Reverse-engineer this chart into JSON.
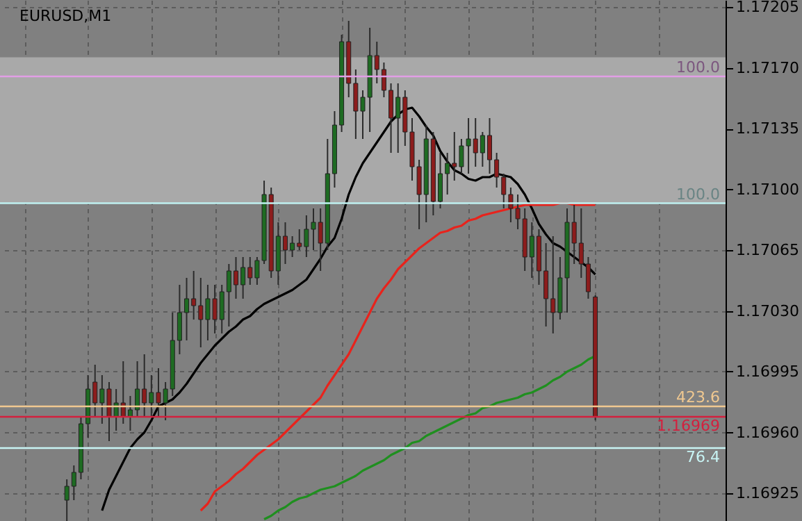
{
  "chart_data": {
    "type": "candlestick",
    "title": "EURUSD,M1",
    "categories": [
      null,
      null,
      null,
      null,
      null,
      null,
      null,
      null,
      null,
      null,
      null,
      null,
      null,
      null,
      null,
      null,
      null,
      null,
      null,
      null,
      null,
      null,
      null,
      null,
      null,
      null,
      null,
      null,
      null,
      null,
      null,
      null,
      null,
      null,
      null,
      null,
      null,
      null,
      null,
      null,
      null,
      null,
      null,
      null,
      null,
      null,
      null,
      null,
      null,
      null,
      null,
      null,
      null,
      null,
      null,
      null,
      null,
      null,
      null,
      null,
      null,
      null,
      null,
      null,
      null,
      null,
      null,
      null,
      null,
      null,
      null,
      null,
      null,
      null,
      null,
      null,
      null,
      null,
      null,
      null,
      null,
      null,
      null,
      null,
      null,
      null,
      null,
      null,
      null,
      null,
      null,
      null,
      null,
      null,
      null,
      null,
      null,
      null,
      null,
      null,
      null
    ],
    "ohlc": [
      null,
      null,
      null,
      null,
      null,
      null,
      null,
      null,
      [
        1.16921,
        1.16933,
        1.16909,
        1.16929
      ],
      [
        1.16929,
        1.16941,
        1.16921,
        1.16937
      ],
      [
        1.16937,
        1.16969,
        1.16933,
        1.16965
      ],
      [
        1.16965,
        1.16993,
        1.16957,
        1.16985
      ],
      [
        1.16989,
        1.16999,
        1.16969,
        1.16977
      ],
      [
        1.16977,
        1.16993,
        1.16965,
        1.16985
      ],
      [
        1.16985,
        1.16989,
        1.16955,
        1.16969
      ],
      [
        1.16969,
        1.16985,
        1.16961,
        1.16977
      ],
      [
        1.16977,
        1.17001,
        1.16965,
        1.16969
      ],
      [
        1.16969,
        1.16981,
        1.16961,
        1.16973
      ],
      [
        1.16973,
        1.17001,
        1.16969,
        1.16985
      ],
      [
        1.16985,
        1.17005,
        1.16969,
        1.16977
      ],
      [
        1.16977,
        1.16993,
        1.16969,
        1.16983
      ],
      [
        1.16983,
        1.16997,
        1.16969,
        1.16977
      ],
      [
        1.16977,
        1.16989,
        1.16967,
        1.16985
      ],
      [
        1.16985,
        1.17029,
        1.16981,
        1.17013
      ],
      [
        1.17013,
        1.17045,
        1.17005,
        1.17029
      ],
      [
        1.17029,
        1.17049,
        1.17013,
        1.17037
      ],
      [
        1.17037,
        1.17053,
        1.17025,
        1.17033
      ],
      [
        1.17033,
        1.17049,
        1.17009,
        1.17025
      ],
      [
        1.17025,
        1.17045,
        1.17013,
        1.17037
      ],
      [
        1.17037,
        1.17045,
        1.17017,
        1.17025
      ],
      [
        1.17025,
        1.17045,
        1.17017,
        1.17041
      ],
      [
        1.17041,
        1.17057,
        1.17021,
        1.17053
      ],
      [
        1.17053,
        1.17061,
        1.17037,
        1.17045
      ],
      [
        1.17045,
        1.17061,
        1.17037,
        1.17055
      ],
      [
        1.17055,
        1.17061,
        1.17045,
        1.17049
      ],
      [
        1.17049,
        1.17061,
        1.17045,
        1.17059
      ],
      [
        1.17059,
        1.17105,
        1.17057,
        1.17097
      ],
      [
        1.17097,
        1.17101,
        1.17049,
        1.17053
      ],
      [
        1.17053,
        1.17081,
        1.17045,
        1.17073
      ],
      [
        1.17073,
        1.17081,
        1.17057,
        1.17065
      ],
      [
        1.17065,
        1.17073,
        1.17061,
        1.17069
      ],
      [
        1.17069,
        1.17077,
        1.17065,
        1.17067
      ],
      [
        1.17067,
        1.17085,
        1.17061,
        1.17077
      ],
      [
        1.17077,
        1.17089,
        1.17065,
        1.17081
      ],
      [
        1.17081,
        1.17089,
        1.17053,
        1.17069
      ],
      [
        1.17069,
        1.17129,
        1.17065,
        1.17109
      ],
      [
        1.17109,
        1.17145,
        1.17101,
        1.17137
      ],
      [
        1.17137,
        1.17189,
        1.17133,
        1.17185
      ],
      [
        1.17185,
        1.17197,
        1.17153,
        1.17161
      ],
      [
        1.17161,
        1.17169,
        1.17129,
        1.17145
      ],
      [
        1.17145,
        1.17157,
        1.17129,
        1.17153
      ],
      [
        1.17153,
        1.17193,
        1.17133,
        1.17177
      ],
      [
        1.17177,
        1.17185,
        1.17161,
        1.17169
      ],
      [
        1.17169,
        1.17173,
        1.17153,
        1.17157
      ],
      [
        1.17157,
        1.17161,
        1.17121,
        1.17141
      ],
      [
        1.17141,
        1.17161,
        1.17121,
        1.17153
      ],
      [
        1.17153,
        1.17157,
        1.17125,
        1.17133
      ],
      [
        1.17133,
        1.17141,
        1.17105,
        1.17113
      ],
      [
        1.17113,
        1.17117,
        1.17077,
        1.17097
      ],
      [
        1.17097,
        1.17137,
        1.17081,
        1.17129
      ],
      [
        1.17129,
        1.17133,
        1.17085,
        1.17093
      ],
      [
        1.17093,
        1.17121,
        1.17089,
        1.17109
      ],
      [
        1.17109,
        1.17121,
        1.17097,
        1.17115
      ],
      [
        1.17115,
        1.17133,
        1.17105,
        1.17113
      ],
      [
        1.17113,
        1.17129,
        1.17109,
        1.17125
      ],
      [
        1.17125,
        1.17141,
        1.17109,
        1.17129
      ],
      [
        1.17129,
        1.17141,
        1.17113,
        1.17121
      ],
      [
        1.17121,
        1.17133,
        1.17113,
        1.17131
      ],
      [
        1.17131,
        1.17141,
        1.17109,
        1.17117
      ],
      [
        1.17117,
        1.17121,
        1.17101,
        1.17107
      ],
      [
        1.17107,
        1.17109,
        1.17089,
        1.17097
      ],
      [
        1.17097,
        1.17101,
        1.17081,
        1.17089
      ],
      [
        1.17089,
        1.17097,
        1.17077,
        1.17083
      ],
      [
        1.17083,
        1.17089,
        1.17053,
        1.17061
      ],
      [
        1.17061,
        1.17081,
        1.17049,
        1.17073
      ],
      [
        1.17073,
        1.17077,
        1.17045,
        1.17053
      ],
      [
        1.17053,
        1.17069,
        1.17021,
        1.17037
      ],
      [
        1.17037,
        1.17073,
        1.17017,
        1.17029
      ],
      [
        1.17029,
        1.17061,
        1.17025,
        1.17049
      ],
      [
        1.17049,
        1.17089,
        1.17029,
        1.17081
      ],
      [
        1.17081,
        1.17091,
        1.17057,
        1.17069
      ],
      [
        1.17069,
        1.17089,
        1.17049,
        1.17057
      ],
      [
        1.17057,
        1.17061,
        1.17037,
        1.17041
      ],
      [
        1.17038,
        1.17039,
        1.16967,
        1.16969
      ],
      null,
      null,
      null,
      null,
      null,
      null,
      null,
      null,
      null,
      null,
      null,
      null,
      null,
      null,
      null,
      null,
      null
    ],
    "series": [
      {
        "type": "line",
        "color": "#000000",
        "values": [
          null,
          null,
          null,
          null,
          null,
          null,
          null,
          null,
          null,
          null,
          null,
          null,
          null,
          1.16915,
          1.16927,
          1.16935,
          1.16943,
          1.16951,
          1.16956,
          1.1696,
          1.16967,
          1.16975,
          1.16977,
          1.16979,
          1.16983,
          1.16988,
          1.16994,
          1.17,
          1.17005,
          1.1701,
          1.17014,
          1.17018,
          1.17021,
          1.17025,
          1.17027,
          1.17031,
          1.17034,
          1.17036,
          1.17038,
          1.1704,
          1.17042,
          1.17045,
          1.17048,
          1.17054,
          1.1706,
          1.17067,
          1.17072,
          1.17083,
          1.17097,
          1.17107,
          1.17115,
          1.17121,
          1.17127,
          1.17133,
          1.17139,
          1.17143,
          1.17146,
          1.17147,
          1.17142,
          1.17136,
          1.17131,
          1.17122,
          1.17116,
          1.17111,
          1.17109,
          1.17106,
          1.17105,
          1.17107,
          1.17107,
          1.17109,
          1.17108,
          1.17107,
          1.17103,
          1.17097,
          1.17089,
          1.1708,
          1.17074,
          1.17069,
          1.17067,
          1.17064,
          1.17061,
          1.17058,
          1.17055,
          1.17051,
          null,
          null,
          null,
          null,
          null,
          null,
          null,
          null,
          null,
          null,
          null,
          null,
          null,
          null,
          null,
          null,
          null
        ]
      },
      {
        "type": "line",
        "color": "#e8231c",
        "values": [
          null,
          null,
          null,
          null,
          null,
          null,
          null,
          null,
          null,
          null,
          null,
          null,
          null,
          null,
          null,
          null,
          null,
          null,
          null,
          null,
          null,
          null,
          null,
          null,
          null,
          null,
          null,
          1.16915,
          1.16919,
          1.16926,
          1.16929,
          1.16932,
          1.16936,
          1.16939,
          1.16943,
          1.16947,
          1.1695,
          1.16953,
          1.16956,
          1.1696,
          1.16964,
          1.16968,
          1.16972,
          1.16976,
          1.1698,
          1.16987,
          1.16993,
          1.16999,
          1.17005,
          1.17013,
          1.17021,
          1.17029,
          1.17037,
          1.17043,
          1.17048,
          1.17054,
          1.17058,
          1.17062,
          1.17066,
          1.17069,
          1.17072,
          1.17075,
          1.17076,
          1.17078,
          1.17079,
          1.17082,
          1.17083,
          1.17085,
          1.17086,
          1.17087,
          1.17088,
          1.17089,
          1.1709,
          1.17091,
          1.17091,
          1.17091,
          1.17091,
          1.17091,
          1.17092,
          1.17092,
          1.17091,
          1.17091,
          1.17091,
          1.17091,
          null,
          null,
          null,
          null,
          null,
          null,
          null,
          null,
          null,
          null,
          null,
          null,
          null,
          null,
          null,
          null,
          null
        ]
      },
      {
        "type": "line",
        "color": "#1f8f1f",
        "values": [
          null,
          null,
          null,
          null,
          null,
          null,
          null,
          null,
          null,
          null,
          null,
          null,
          null,
          null,
          null,
          null,
          null,
          null,
          null,
          null,
          null,
          null,
          null,
          null,
          null,
          null,
          null,
          null,
          null,
          null,
          null,
          null,
          null,
          null,
          null,
          null,
          1.1691,
          1.16912,
          1.16915,
          1.16917,
          1.1692,
          1.16922,
          1.16923,
          1.16925,
          1.16927,
          1.16928,
          1.16929,
          1.16931,
          1.16933,
          1.16935,
          1.16938,
          1.1694,
          1.16942,
          1.16944,
          1.16947,
          1.16949,
          1.16951,
          1.16954,
          1.16955,
          1.16958,
          1.1696,
          1.16962,
          1.16964,
          1.16966,
          1.16968,
          1.1697,
          1.16971,
          1.16974,
          1.16975,
          1.16977,
          1.16978,
          1.16979,
          1.1698,
          1.16982,
          1.16983,
          1.16985,
          1.16987,
          1.1699,
          1.16992,
          1.16995,
          1.16997,
          1.16999,
          1.17002,
          1.17004,
          null,
          null,
          null,
          null,
          null,
          null,
          null,
          null,
          null,
          null,
          null,
          null,
          null,
          null,
          null,
          null,
          null
        ]
      }
    ],
    "ylim": [
      1.16909,
      1.17209
    ],
    "yticks": [
      1.16925,
      {
        "value": 1.1696,
        "label": "1.16960"
      },
      1.16995,
      {
        "value": 1.1703,
        "label": "1.17030"
      },
      1.17065,
      {
        "value": 1.171,
        "label": "1.17100"
      },
      1.17135,
      {
        "value": 1.1717,
        "label": "1.17170"
      },
      1.17205
    ],
    "annotations": [
      {
        "text": "100.0",
        "y": 1.17165
      },
      {
        "text": "100.0",
        "y": 1.17092
      },
      {
        "text": "423.6",
        "y": 1.16975
      },
      {
        "text": "76.4",
        "y": 1.16951
      }
    ],
    "tick_labels": "y",
    "grid": true,
    "bands": [
      {
        "axis": "y",
        "from": 1.17092,
        "to": 1.17176,
        "color": "#a9a9a9"
      }
    ],
    "ref_lines": [
      {
        "axis": "y",
        "value": 1.17165,
        "color": "#e29ee6"
      },
      {
        "axis": "y",
        "value": 1.17092,
        "color": "#bff0f0"
      },
      {
        "axis": "y",
        "value": 1.16975,
        "color": "#f0c890"
      },
      {
        "axis": "y",
        "value": 1.16969,
        "label": "1.16969",
        "color": "#d3203e"
      },
      {
        "axis": "y",
        "value": 1.16951,
        "color": "#c8f4f4"
      }
    ]
  }
}
